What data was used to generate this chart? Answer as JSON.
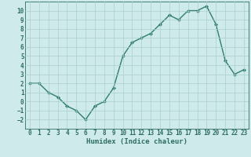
{
  "x": [
    0,
    1,
    2,
    3,
    4,
    5,
    6,
    7,
    8,
    9,
    10,
    11,
    12,
    13,
    14,
    15,
    16,
    17,
    18,
    19,
    20,
    21,
    22,
    23
  ],
  "y": [
    2,
    2,
    1,
    0.5,
    -0.5,
    -1,
    -2,
    -0.5,
    0,
    1.5,
    5,
    6.5,
    7,
    7.5,
    8.5,
    9.5,
    9,
    10,
    10,
    10.5,
    8.5,
    4.5,
    3,
    3.5
  ],
  "line_color": "#2e7d6e",
  "marker": "D",
  "marker_size": 2,
  "line_width": 1.0,
  "bg_color": "#ceeaea",
  "grid_color": "#aacece",
  "xlabel": "Humidex (Indice chaleur)",
  "xlim": [
    -0.5,
    23.5
  ],
  "ylim": [
    -3,
    11
  ],
  "yticks": [
    -2,
    -1,
    0,
    1,
    2,
    3,
    4,
    5,
    6,
    7,
    8,
    9,
    10
  ],
  "xticks": [
    0,
    1,
    2,
    3,
    4,
    5,
    6,
    7,
    8,
    9,
    10,
    11,
    12,
    13,
    14,
    15,
    16,
    17,
    18,
    19,
    20,
    21,
    22,
    23
  ],
  "tick_fontsize": 5.5,
  "label_fontsize": 6.5,
  "label_color": "#2e6e60"
}
